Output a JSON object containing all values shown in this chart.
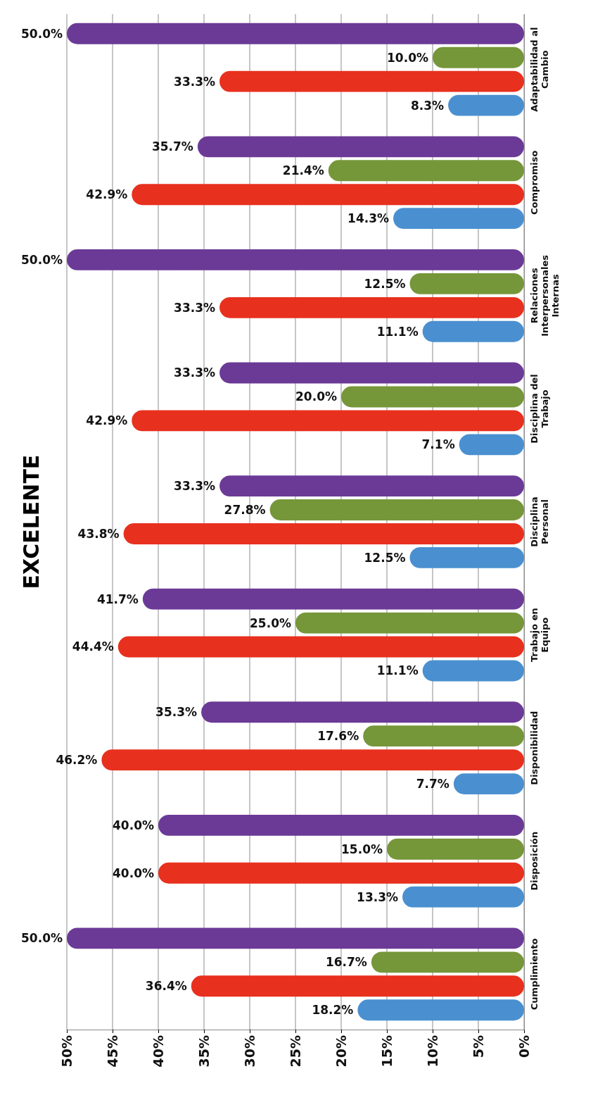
{
  "chart_data": {
    "type": "bar",
    "orientation": "horizontal",
    "title": "EXCELENTE",
    "categories": [
      "Adaptabilidad al Cambio",
      "Compromiso",
      "Relaciones Interpersonales Internas",
      "Disciplina del Trabajo",
      "Disciplina Personal",
      "Trabajo en Equipo",
      "Disponibilidad",
      "Disposición",
      "Cumplimiento"
    ],
    "series": [
      {
        "color": "#6b3a96",
        "values": [
          50.0,
          35.7,
          50.0,
          33.3,
          33.3,
          41.7,
          35.3,
          40.0,
          50.0
        ],
        "value_labels": [
          "50.0%",
          "35.7%",
          "50.0%",
          "33.3%",
          "33.3%",
          "41.7%",
          "35.3%",
          "40.0%",
          "50.0%"
        ]
      },
      {
        "color": "#76963a",
        "values": [
          10.0,
          21.4,
          12.5,
          20.0,
          27.8,
          25.0,
          17.6,
          15.0,
          16.7
        ],
        "value_labels": [
          "10.0%",
          "21.4%",
          "12.5%",
          "20.0%",
          "27.8%",
          "25.0%",
          "17.6%",
          "15.0%",
          "16.7%"
        ]
      },
      {
        "color": "#e8301e",
        "values": [
          33.3,
          42.9,
          33.3,
          42.9,
          43.8,
          44.4,
          46.2,
          40.0,
          36.4
        ],
        "value_labels": [
          "33.3%",
          "42.9%",
          "33.3%",
          "42.9%",
          "43.8%",
          "44.4%",
          "46.2%",
          "40.0%",
          "36.4%"
        ]
      },
      {
        "color": "#4a90d0",
        "values": [
          8.3,
          14.3,
          11.1,
          7.1,
          12.5,
          11.1,
          7.7,
          13.3,
          18.2
        ],
        "value_labels": [
          "8.3%",
          "14.3%",
          "11.1%",
          "7.1%",
          "12.5%",
          "11.1%",
          "7.7%",
          "13.3%",
          "18.2%"
        ]
      }
    ],
    "xlim": [
      50,
      0
    ],
    "xticks": [
      {
        "value": 50,
        "label": "50%"
      },
      {
        "value": 45,
        "label": "45%"
      },
      {
        "value": 40,
        "label": "40%"
      },
      {
        "value": 35,
        "label": "35%"
      },
      {
        "value": 30,
        "label": "30%"
      },
      {
        "value": 25,
        "label": "25%"
      },
      {
        "value": 20,
        "label": "20%"
      },
      {
        "value": 15,
        "label": "15%"
      },
      {
        "value": 10,
        "label": "10%"
      },
      {
        "value": 5,
        "label": "5%"
      },
      {
        "value": 0,
        "label": "0%"
      }
    ],
    "grid": true
  }
}
